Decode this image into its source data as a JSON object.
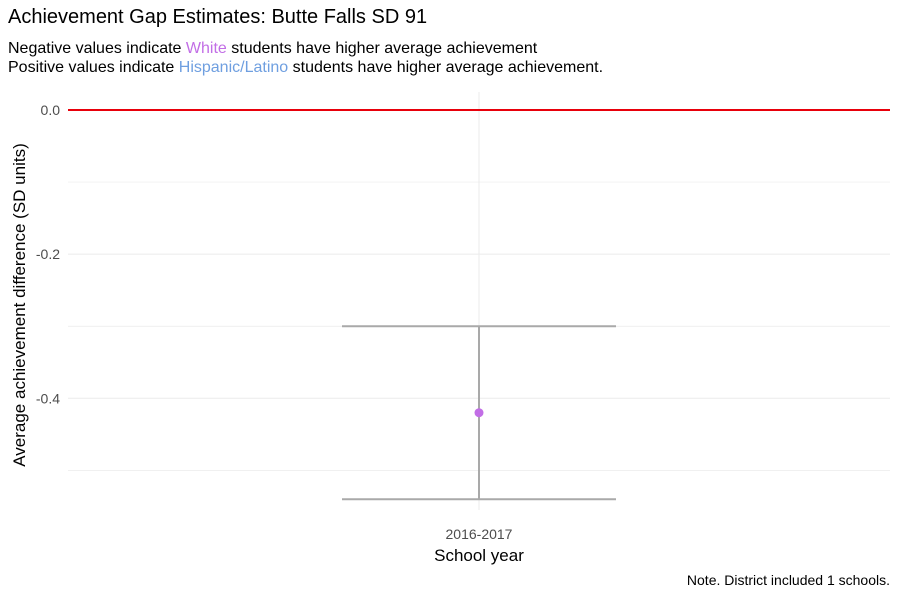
{
  "title": "Achievement Gap Estimates: Butte Falls SD 91",
  "subtitle": {
    "line1": {
      "prefix": "Negative values indicate ",
      "highlight": "White",
      "suffix": " students have higher average achievement"
    },
    "line2": {
      "prefix": "Positive values indicate ",
      "highlight": "Hispanic/Latino",
      "suffix": " students have higher average achievement."
    }
  },
  "note": "Note. District included 1 schools.",
  "colors": {
    "white_group": "#c26ee6",
    "hispanic_group": "#6f9fe0",
    "reference_line": "#e8000b",
    "error_bar": "#a9a9a9",
    "grid": "#ebebeb",
    "point": "#c26ee6"
  },
  "chart_data": {
    "type": "scatter",
    "title": "Achievement Gap Estimates: Butte Falls SD 91",
    "xlabel": "School year",
    "ylabel": "Average achievement difference (SD units)",
    "categories": [
      "2016-2017"
    ],
    "series": [
      {
        "values": [
          -0.42
        ],
        "lower": [
          -0.54
        ],
        "upper": [
          -0.3
        ]
      }
    ],
    "reference_line": 0.0,
    "ylim": [
      -0.555,
      0.025
    ],
    "yticks": [
      0.0,
      -0.2,
      -0.4
    ],
    "ytick_labels": [
      "0.0",
      "-0.2",
      "-0.4"
    ],
    "grid": true
  }
}
